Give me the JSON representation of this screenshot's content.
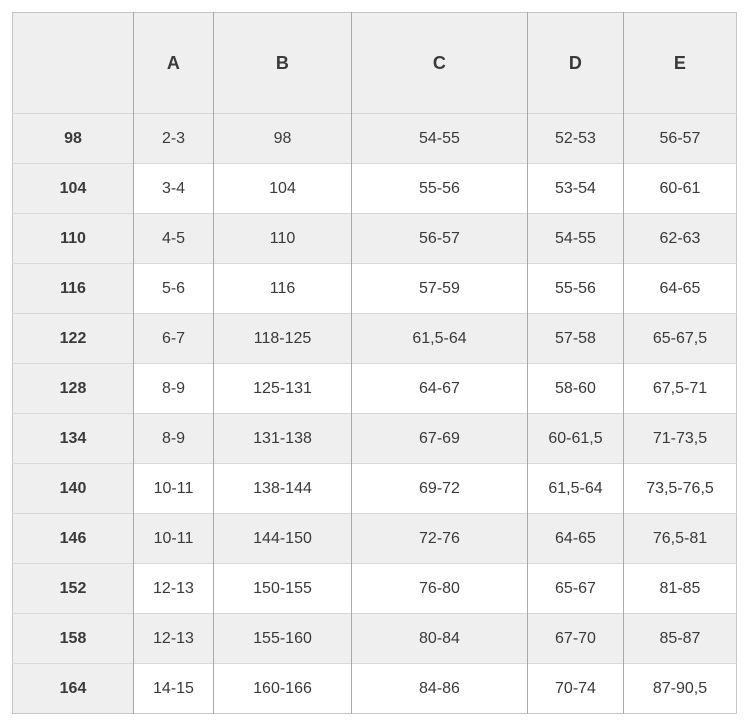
{
  "table": {
    "columns": [
      "",
      "A",
      "B",
      "C",
      "D",
      "E"
    ],
    "rows": [
      {
        "label": "98",
        "values": [
          "2-3",
          "98",
          "54-55",
          "52-53",
          "56-57"
        ]
      },
      {
        "label": "104",
        "values": [
          "3-4",
          "104",
          "55-56",
          "53-54",
          "60-61"
        ]
      },
      {
        "label": "110",
        "values": [
          "4-5",
          "110",
          "56-57",
          "54-55",
          "62-63"
        ]
      },
      {
        "label": "116",
        "values": [
          "5-6",
          "116",
          "57-59",
          "55-56",
          "64-65"
        ]
      },
      {
        "label": "122",
        "values": [
          "6-7",
          "118-125",
          "61,5-64",
          "57-58",
          "65-67,5"
        ]
      },
      {
        "label": "128",
        "values": [
          "8-9",
          "125-131",
          "64-67",
          "58-60",
          "67,5-71"
        ]
      },
      {
        "label": "134",
        "values": [
          "8-9",
          "131-138",
          "67-69",
          "60-61,5",
          "71-73,5"
        ]
      },
      {
        "label": "140",
        "values": [
          "10-11",
          "138-144",
          "69-72",
          "61,5-64",
          "73,5-76,5"
        ]
      },
      {
        "label": "146",
        "values": [
          "10-11",
          "144-150",
          "72-76",
          "64-65",
          "76,5-81"
        ]
      },
      {
        "label": "152",
        "values": [
          "12-13",
          "150-155",
          "76-80",
          "65-67",
          "81-85"
        ]
      },
      {
        "label": "158",
        "values": [
          "12-13",
          "155-160",
          "80-84",
          "67-70",
          "85-87"
        ]
      },
      {
        "label": "164",
        "values": [
          "14-15",
          "160-166",
          "84-86",
          "70-74",
          "87-90,5"
        ]
      }
    ]
  },
  "colors": {
    "stripe_bg": "#efefef",
    "white_bg": "#ffffff",
    "vertical_border": "#a9a9a9",
    "horizontal_border": "#d8d8d8",
    "outer_border": "#c6c6c6",
    "text": "#3a3a3a"
  }
}
